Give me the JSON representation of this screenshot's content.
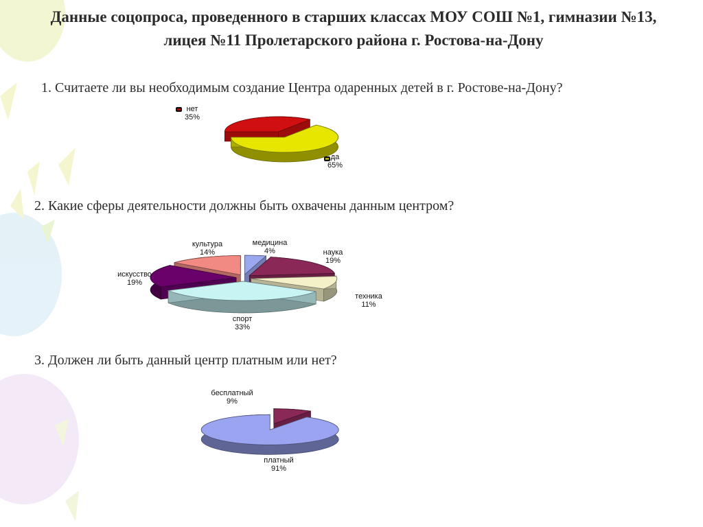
{
  "title": "Данные соцопроса, проведенного в старших классах МОУ СОШ №1, гимназии №13, лицея №11 Пролетарского района г. Ростова-на-Дону",
  "questions": [
    "1. Считаете ли вы необходимым создание Центра одаренных детей в г. Ростове-на-Дону?",
    "2. Какие сферы деятельности должны быть охвачены данным центром?",
    "3. Должен ли быть данный центр платным или нет?"
  ],
  "chart_data": [
    {
      "type": "pie",
      "style": "3d-exploded",
      "slices": [
        {
          "label": "нет",
          "value": 35,
          "percent_label": "35%",
          "color": "#d01010"
        },
        {
          "label": "да",
          "value": 65,
          "percent_label": "65%",
          "color": "#e6e600"
        }
      ]
    },
    {
      "type": "pie",
      "style": "3d-exploded",
      "slices": [
        {
          "label": "медицина",
          "value": 4,
          "percent_label": "4%",
          "color": "#9aa8f0"
        },
        {
          "label": "наука",
          "value": 19,
          "percent_label": "19%",
          "color": "#8a2858"
        },
        {
          "label": "техника",
          "value": 11,
          "percent_label": "11%",
          "color": "#f4f0c8"
        },
        {
          "label": "спорт",
          "value": 33,
          "percent_label": "33%",
          "color": "#c8f4f4"
        },
        {
          "label": "искусство",
          "value": 19,
          "percent_label": "19%",
          "color": "#6a006a"
        },
        {
          "label": "культура",
          "value": 14,
          "percent_label": "14%",
          "color": "#f08a82"
        }
      ]
    },
    {
      "type": "pie",
      "style": "3d-exploded",
      "slices": [
        {
          "label": "бесплатный",
          "value": 9,
          "percent_label": "9%",
          "color": "#8a2858"
        },
        {
          "label": "платный",
          "value": 91,
          "percent_label": "91%",
          "color": "#9aa4f0"
        }
      ]
    }
  ]
}
